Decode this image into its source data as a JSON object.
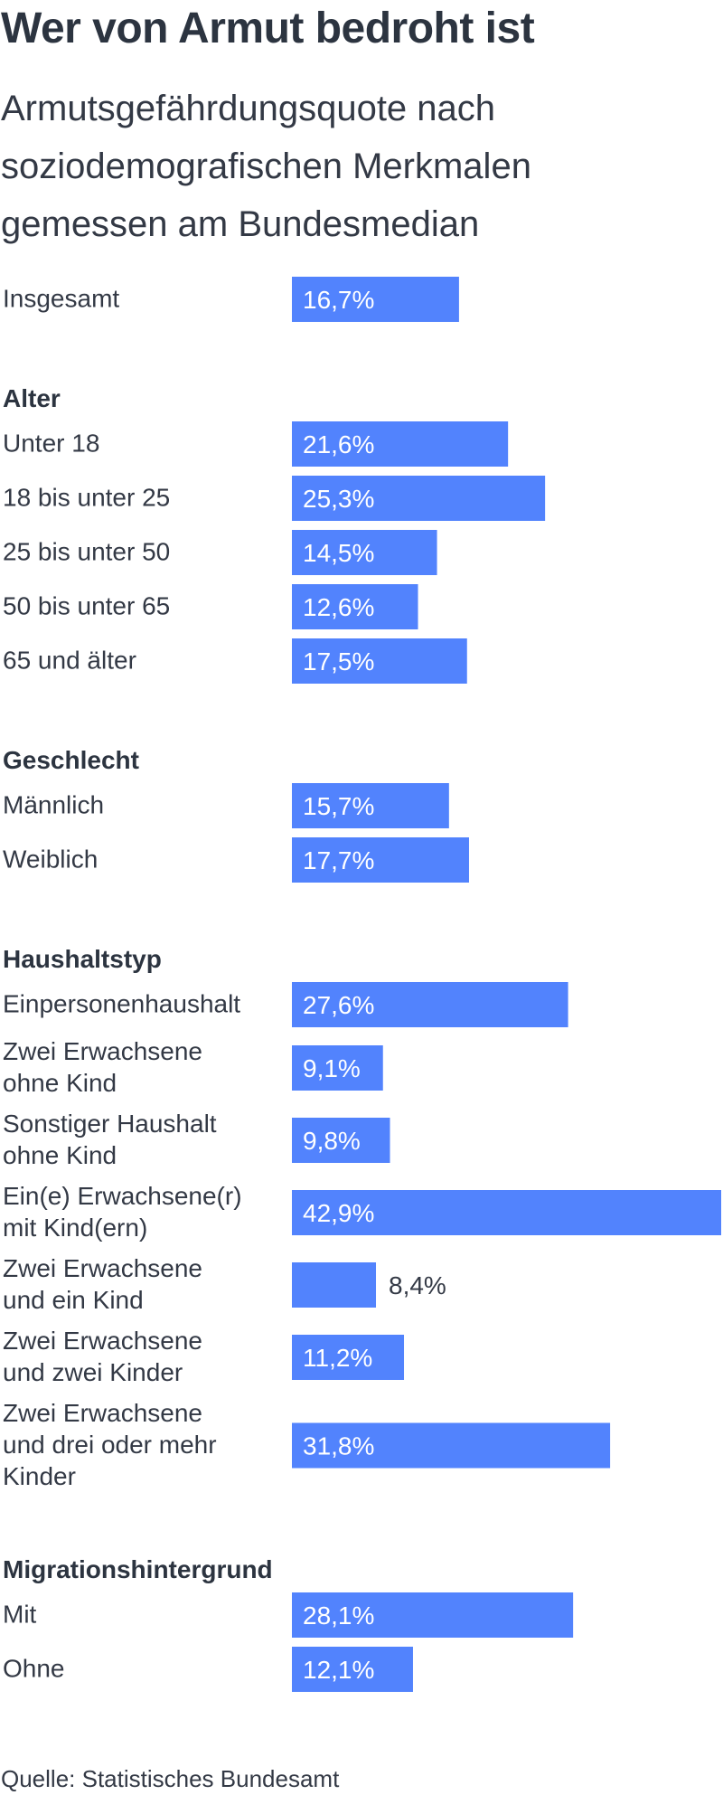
{
  "title": "Wer von Armut bedroht ist",
  "subtitle": "Armutsgefährdungsquote nach soziodemografischen Merkmalen gemessen am Bundesmedian",
  "source": "Quelle: Statistisches Bundesamt",
  "colors": {
    "bar": "#5283fd",
    "text": "#333945",
    "heading": "#2c3440",
    "value_inside": "#ffffff"
  },
  "chart_data": {
    "type": "bar",
    "orientation": "horizontal",
    "unit": "%",
    "xlim": [
      0,
      42.9
    ],
    "groups": [
      {
        "name": "",
        "items": [
          {
            "label": "Insgesamt",
            "value": 16.7,
            "value_label": "16,7%"
          }
        ]
      },
      {
        "name": "Alter",
        "items": [
          {
            "label": "Unter 18",
            "value": 21.6,
            "value_label": "21,6%"
          },
          {
            "label": "18 bis unter 25",
            "value": 25.3,
            "value_label": "25,3%"
          },
          {
            "label": "25 bis unter 50",
            "value": 14.5,
            "value_label": "14,5%"
          },
          {
            "label": "50 bis unter 65",
            "value": 12.6,
            "value_label": "12,6%"
          },
          {
            "label": "65 und älter",
            "value": 17.5,
            "value_label": "17,5%"
          }
        ]
      },
      {
        "name": "Geschlecht",
        "items": [
          {
            "label": "Männlich",
            "value": 15.7,
            "value_label": "15,7%"
          },
          {
            "label": "Weiblich",
            "value": 17.7,
            "value_label": "17,7%"
          }
        ]
      },
      {
        "name": "Haushaltstyp",
        "items": [
          {
            "label": "Einpersonenhaushalt",
            "value": 27.6,
            "value_label": "27,6%"
          },
          {
            "label": "Zwei Erwachsene\nohne Kind",
            "value": 9.1,
            "value_label": "9,1%"
          },
          {
            "label": "Sonstiger Haushalt\nohne Kind",
            "value": 9.8,
            "value_label": "9,8%"
          },
          {
            "label": "Ein(e) Erwachsene(r)\nmit Kind(ern)",
            "value": 42.9,
            "value_label": "42,9%"
          },
          {
            "label": "Zwei Erwachsene\nund ein Kind",
            "value": 8.4,
            "value_label": "8,4%"
          },
          {
            "label": "Zwei Erwachsene\nund zwei Kinder",
            "value": 11.2,
            "value_label": "11,2%"
          },
          {
            "label": "Zwei Erwachsene\nund drei oder mehr\nKinder",
            "value": 31.8,
            "value_label": "31,8%"
          }
        ]
      },
      {
        "name": "Migrationshintergrund",
        "items": [
          {
            "label": "Mit",
            "value": 28.1,
            "value_label": "28,1%"
          },
          {
            "label": "Ohne",
            "value": 12.1,
            "value_label": "12,1%"
          }
        ]
      }
    ]
  }
}
